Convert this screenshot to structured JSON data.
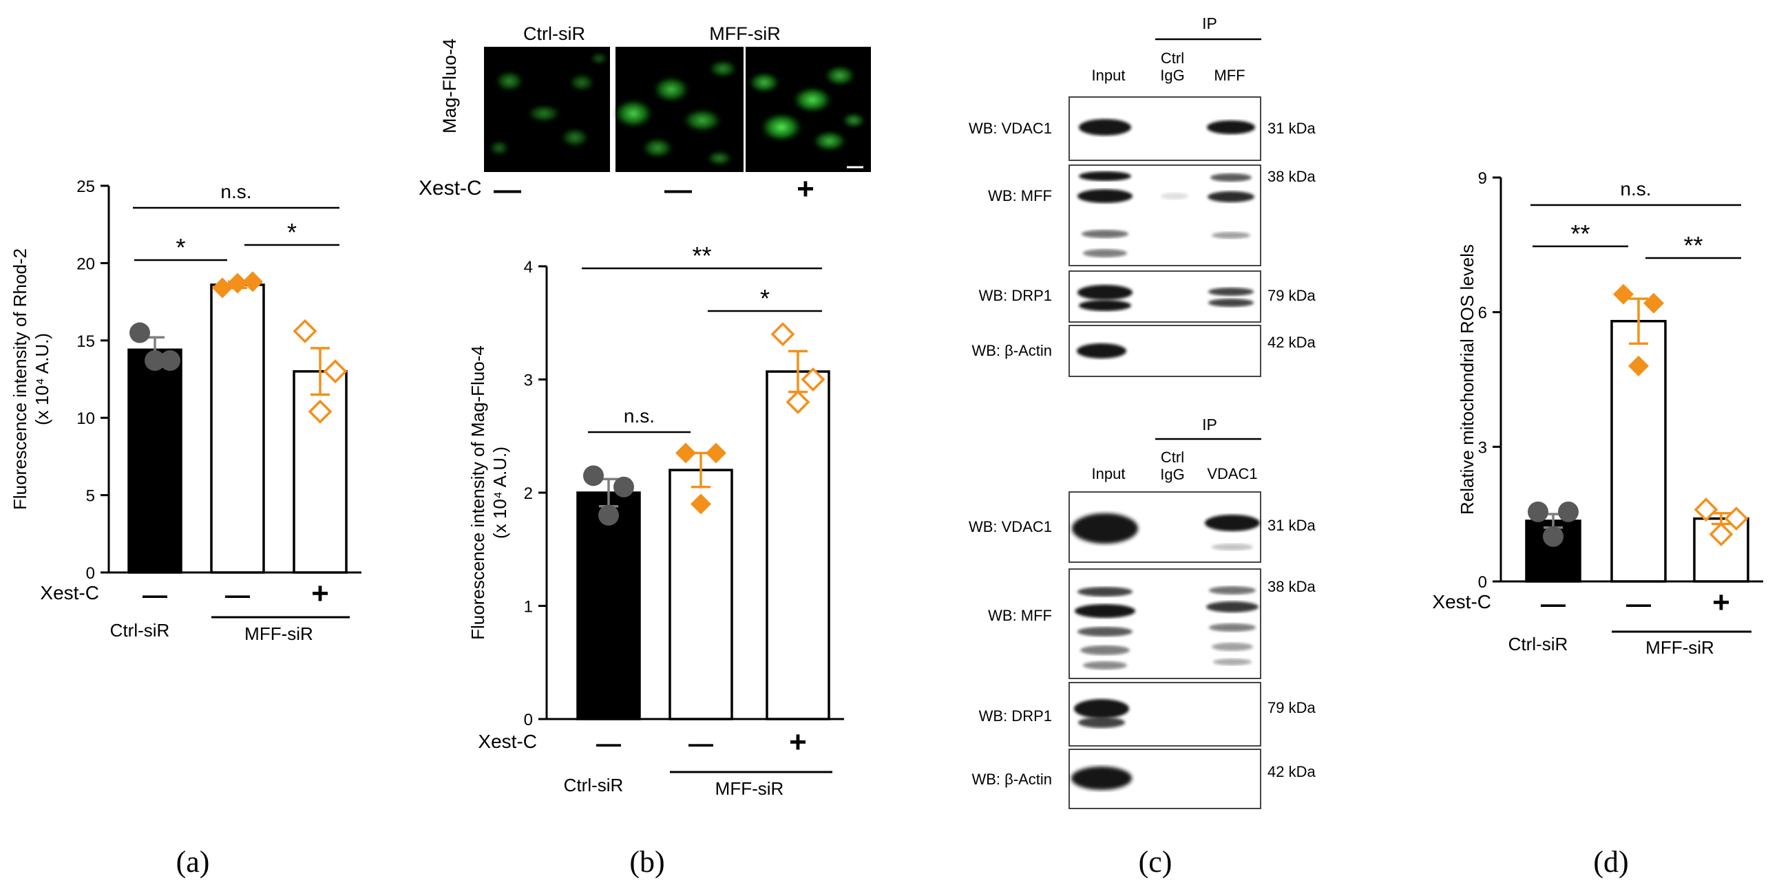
{
  "panel_labels": [
    "(a)",
    "(b)",
    "(c)",
    "(d)"
  ],
  "chart_data": [
    {
      "panel": "a",
      "type": "bar",
      "ylabel_line1": "Fluorescence intensity of Rhod-2",
      "ylabel_line2": "(x 10⁴  A.U.)",
      "ylim": [
        0,
        25
      ],
      "yticks": [
        0,
        5,
        10,
        15,
        20,
        25
      ],
      "row_label": "Xest-C",
      "categories": [
        {
          "treatment": "—",
          "group": "Ctrl-siR",
          "mean": 14.4,
          "sem": 0.8,
          "points": [
            15.5,
            13.7,
            13.7
          ],
          "style": "filled-black",
          "marker": "circle"
        },
        {
          "treatment": "—",
          "group": "MFF-siR",
          "mean": 18.6,
          "sem": 0.2,
          "points": [
            18.4,
            18.8,
            18.7
          ],
          "style": "open",
          "marker": "diamond-filled"
        },
        {
          "treatment": "+",
          "group": "MFF-siR",
          "mean": 13.0,
          "sem": 1.5,
          "points": [
            15.6,
            13.0,
            10.4
          ],
          "style": "open",
          "marker": "diamond-open"
        }
      ],
      "groups": [
        "Ctrl-siR",
        "MFF-siR"
      ],
      "significance": [
        {
          "from": 0,
          "to": 1,
          "label": "*"
        },
        {
          "from": 1,
          "to": 2,
          "label": "*"
        },
        {
          "from": 0,
          "to": 2,
          "label": "n.s."
        }
      ]
    },
    {
      "panel": "b",
      "type": "bar",
      "ylabel_line1": "Fluorescence intensity of Mag-Fluo-4",
      "ylabel_line2": "(x 10⁴  A.U.)",
      "ylim": [
        0,
        4
      ],
      "yticks": [
        0,
        1,
        2,
        3,
        4
      ],
      "row_label": "Xest-C",
      "categories": [
        {
          "treatment": "—",
          "group": "Ctrl-siR",
          "mean": 2.0,
          "sem": 0.12,
          "points": [
            2.15,
            2.05,
            1.8
          ],
          "style": "filled-black",
          "marker": "circle"
        },
        {
          "treatment": "—",
          "group": "MFF-siR",
          "mean": 2.2,
          "sem": 0.15,
          "points": [
            2.35,
            2.35,
            1.9
          ],
          "style": "open",
          "marker": "diamond-filled"
        },
        {
          "treatment": "+",
          "group": "MFF-siR",
          "mean": 3.07,
          "sem": 0.18,
          "points": [
            3.4,
            3.0,
            2.8
          ],
          "style": "open",
          "marker": "diamond-open"
        }
      ],
      "groups": [
        "Ctrl-siR",
        "MFF-siR"
      ],
      "significance": [
        {
          "from": 0,
          "to": 1,
          "label": "n.s."
        },
        {
          "from": 1,
          "to": 2,
          "label": "*"
        },
        {
          "from": 0,
          "to": 2,
          "label": "**"
        }
      ]
    },
    {
      "panel": "d",
      "type": "bar",
      "ylabel_line1": "Relative mitochondrial ROS levels",
      "ylabel_line2": "",
      "ylim": [
        0,
        9
      ],
      "yticks": [
        0,
        3,
        6,
        9
      ],
      "row_label": "Xest-C",
      "categories": [
        {
          "treatment": "—",
          "group": "Ctrl-siR",
          "mean": 1.35,
          "sem": 0.15,
          "points": [
            1.55,
            1.55,
            1.0
          ],
          "style": "filled-black",
          "marker": "circle"
        },
        {
          "treatment": "—",
          "group": "MFF-siR",
          "mean": 5.8,
          "sem": 0.5,
          "points": [
            6.4,
            6.2,
            4.8
          ],
          "style": "open",
          "marker": "diamond-filled"
        },
        {
          "treatment": "+",
          "group": "MFF-siR",
          "mean": 1.4,
          "sem": 0.12,
          "points": [
            1.6,
            1.4,
            1.05
          ],
          "style": "open",
          "marker": "diamond-open"
        }
      ],
      "groups": [
        "Ctrl-siR",
        "MFF-siR"
      ],
      "significance": [
        {
          "from": 0,
          "to": 1,
          "label": "**"
        },
        {
          "from": 1,
          "to": 2,
          "label": "**"
        },
        {
          "from": 0,
          "to": 2,
          "label": "n.s."
        }
      ]
    }
  ],
  "micrographs": {
    "ylabel": "Mag-Fluo-4",
    "titles": [
      "Ctrl-siR",
      "MFF-siR"
    ],
    "row_label": "Xest-C",
    "treatments": [
      "—",
      "—",
      "+"
    ]
  },
  "blots": [
    {
      "header_ip": "IP",
      "lanes": [
        "Input",
        "Ctrl IgG",
        "MFF"
      ],
      "rows": [
        {
          "label": "WB: VDAC1",
          "markers": [
            "31 kDa"
          ]
        },
        {
          "label": "WB: MFF",
          "markers": [
            "38 kDa"
          ]
        },
        {
          "label": "WB: DRP1",
          "markers": [
            "79 kDa"
          ]
        },
        {
          "label": "WB: β-Actin",
          "markers": [
            "42 kDa"
          ]
        }
      ]
    },
    {
      "header_ip": "IP",
      "lanes": [
        "Input",
        "Ctrl IgG",
        "VDAC1"
      ],
      "rows": [
        {
          "label": "WB: VDAC1",
          "markers": [
            "31 kDa"
          ]
        },
        {
          "label": "WB: MFF",
          "markers": [
            "38 kDa"
          ]
        },
        {
          "label": "WB: DRP1",
          "markers": [
            "79 kDa"
          ]
        },
        {
          "label": "WB: β-Actin",
          "markers": [
            "42 kDa"
          ]
        }
      ]
    }
  ],
  "colors": {
    "orange": "#F39019",
    "dot_gray": "#595959",
    "err_gray": "#7f7f7f",
    "green": "#25d125",
    "bar_black": "#000000"
  }
}
